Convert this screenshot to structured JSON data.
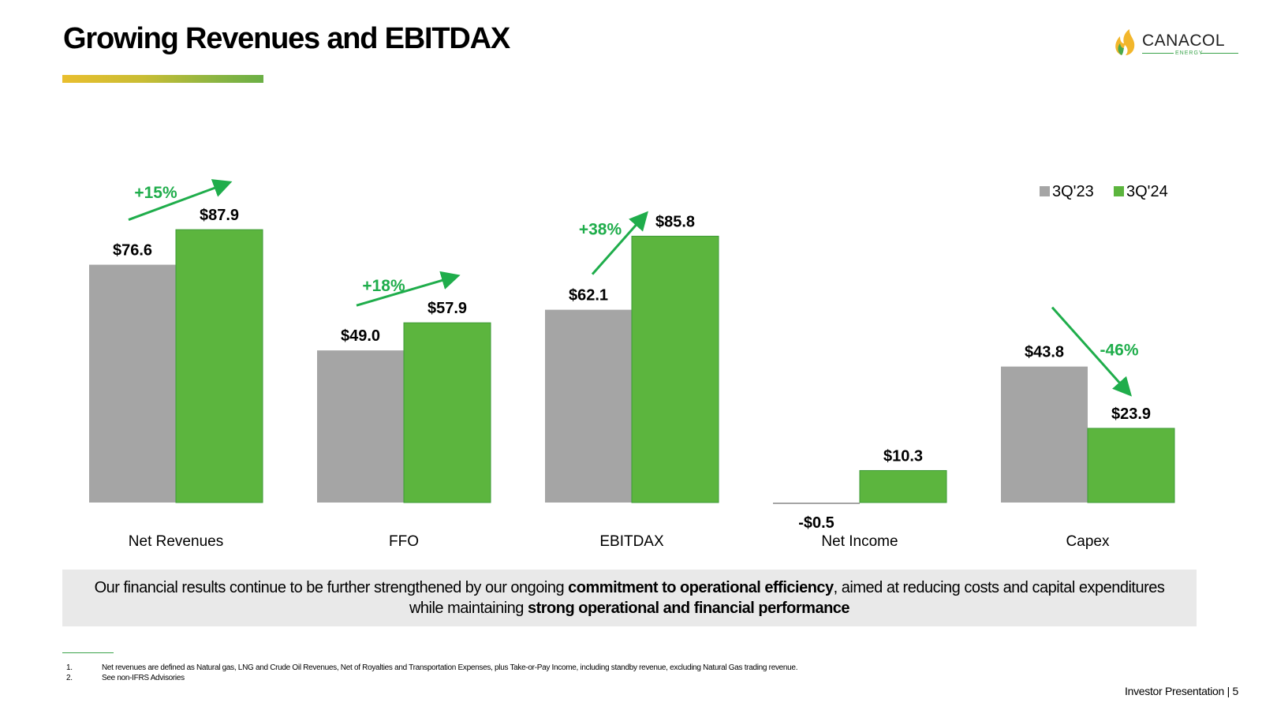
{
  "slide": {
    "title": "Growing Revenues and EBITDAX",
    "logo": {
      "name": "CANACOL",
      "sub": "ENERGY",
      "icon": "flame-icon"
    }
  },
  "colors": {
    "series_a": "#a5a5a5",
    "series_b": "#5cb53e",
    "bar_outline": "#3d9a36",
    "accent": "#1fad4b"
  },
  "chart_data": {
    "type": "bar",
    "categories": [
      "Net Revenues",
      "FFO",
      "EBITDAX",
      "Net Income",
      "Capex"
    ],
    "series": [
      {
        "name": "3Q'23",
        "values": [
          76.6,
          49.0,
          62.1,
          -0.5,
          43.8
        ],
        "labels": [
          "$76.6",
          "$49.0",
          "$62.1",
          "-$0.5",
          "$43.8"
        ]
      },
      {
        "name": "3Q'24",
        "values": [
          87.9,
          57.9,
          85.8,
          10.3,
          23.9
        ],
        "labels": [
          "$87.9",
          "$57.9",
          "$85.8",
          "$10.3",
          "$23.9"
        ]
      }
    ],
    "annotations": [
      {
        "category": "Net Revenues",
        "text": "+15%",
        "direction": "up"
      },
      {
        "category": "FFO",
        "text": "+18%",
        "direction": "up"
      },
      {
        "category": "EBITDAX",
        "text": "+38%",
        "direction": "up"
      },
      {
        "category": "Capex",
        "text": "-46%",
        "direction": "down"
      }
    ],
    "legend_position": "top-right",
    "grid": false,
    "ylim": [
      -0.5,
      100
    ]
  },
  "summary": {
    "t1": "Our financial results continue to be further strengthened by our ongoing ",
    "b1": "commitment to operational efficiency",
    "t2": ", aimed at reducing costs and capital expenditures while maintaining ",
    "b2": "strong operational and financial performance"
  },
  "footnotes": [
    {
      "num": "1.",
      "text": "Net revenues are defined as Natural gas, LNG and Crude Oil Revenues, Net of Royalties and Transportation Expenses, plus Take-or-Pay Income, including standby revenue, excluding Natural Gas trading revenue."
    },
    {
      "num": "2.",
      "text": "See non-IFRS Advisories"
    }
  ],
  "footer": "Investor Presentation | 5"
}
